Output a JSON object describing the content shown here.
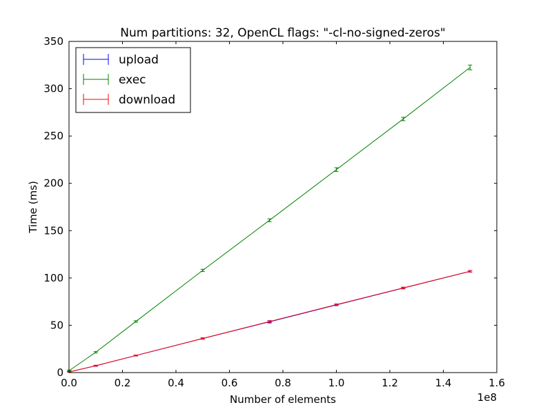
{
  "chart_data": {
    "type": "line",
    "title": "Num partitions: 32, OpenCL flags: \"-cl-no-signed-zeros\"",
    "xlabel": "Number of elements",
    "ylabel": "Time (ms)",
    "x_offset_label": "1e8",
    "xlim": [
      0,
      1.6
    ],
    "ylim": [
      0,
      350
    ],
    "x_ticks": [
      "0.0",
      "0.2",
      "0.4",
      "0.6",
      "0.8",
      "1.0",
      "1.2",
      "1.4",
      "1.6"
    ],
    "y_ticks": [
      "0",
      "50",
      "100",
      "150",
      "200",
      "250",
      "300",
      "350"
    ],
    "legend_position": "upper-left",
    "grid": false,
    "x": [
      0.001,
      0.1,
      0.25,
      0.5,
      0.75,
      1.0,
      1.25,
      1.5
    ],
    "series": [
      {
        "name": "upload",
        "color": "#0000ff",
        "values": [
          0.7,
          7.2,
          18.0,
          36.0,
          53.7,
          71.5,
          89.3,
          107.0
        ],
        "errors": [
          0.3,
          0.5,
          0.5,
          0.7,
          1.2,
          0.8,
          0.8,
          0.8
        ]
      },
      {
        "name": "exec",
        "color": "#008000",
        "values": [
          2.2,
          21.5,
          54.0,
          108.0,
          161.0,
          214.5,
          268.0,
          322.5
        ],
        "errors": [
          0.5,
          0.8,
          0.8,
          1.2,
          1.5,
          2.0,
          1.8,
          2.5
        ]
      },
      {
        "name": "download",
        "color": "#ff0000",
        "values": [
          0.7,
          7.3,
          18.1,
          36.1,
          54.0,
          71.8,
          89.5,
          107.1
        ],
        "errors": [
          0.3,
          0.5,
          0.5,
          0.7,
          0.8,
          0.8,
          0.8,
          0.8
        ]
      }
    ]
  }
}
